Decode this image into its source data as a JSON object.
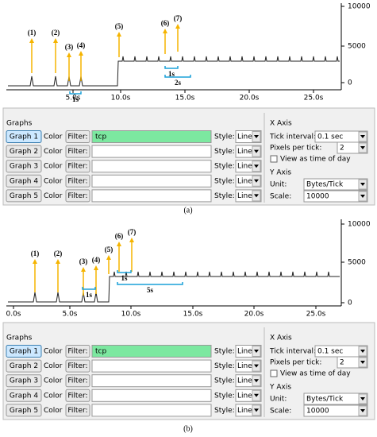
{
  "panels": [
    {
      "graph": {
        "yticks": [
          "10000",
          "5000",
          "0"
        ],
        "xticks": [
          "5.0s",
          "10.0s",
          "15.0s",
          "20.0s",
          "25.0s"
        ],
        "annotations": [
          "(1)",
          "(2)",
          "(3)",
          "(4)",
          "(5)",
          "(6)",
          "(7)"
        ],
        "spans": [
          "1s",
          "1s",
          "2s"
        ]
      },
      "controls": {
        "graphs_title": "Graphs",
        "rows": [
          {
            "button": "Graph 1",
            "color": "Color",
            "text_color": "#000000",
            "filter": "Filter:",
            "filter_value": "tcp",
            "style_label": "Style:",
            "style": "Line"
          },
          {
            "button": "Graph 2",
            "color": "Color",
            "text_color": "#e00000",
            "filter": "Filter:",
            "style_label": "Style:",
            "style": "Line"
          },
          {
            "button": "Graph 3",
            "color": "Color",
            "text_color": "#00c000",
            "filter": "Filter:",
            "style_label": "Style:",
            "style": "Line"
          },
          {
            "button": "Graph 4",
            "color": "Color",
            "text_color": "#0000e0",
            "filter": "Filter:",
            "style_label": "Style:",
            "style": "Line"
          },
          {
            "button": "Graph 5",
            "color": "Color",
            "text_color": "#ff40ff",
            "filter": "Filter:",
            "style_label": "Style:",
            "style": "Line"
          }
        ],
        "x_axis": {
          "title": "X Axis",
          "tick_interval_label": "Tick interval:",
          "tick_interval": "0.1 sec",
          "pixels_label": "Pixels per tick:",
          "pixels": "2",
          "view_label": "View as time of day"
        },
        "y_axis": {
          "title": "Y Axis",
          "unit_label": "Unit:",
          "unit": "Bytes/Tick",
          "scale_label": "Scale:",
          "scale": "10000"
        }
      },
      "caption": "(a)"
    },
    {
      "graph": {
        "yticks": [
          "10000",
          "5000",
          "0"
        ],
        "xticks": [
          "0.0s",
          "5.0s",
          "10.0s",
          "15.0s",
          "20.0s",
          "25.0s"
        ],
        "annotations": [
          "(1)",
          "(2)",
          "(3)",
          "(4)",
          "(5)",
          "(6)",
          "(7)"
        ],
        "spans": [
          "1s",
          "1s",
          "5s"
        ]
      },
      "controls": {
        "graphs_title": "Graphs",
        "rows": [
          {
            "button": "Graph 1",
            "color": "Color",
            "text_color": "#000000",
            "filter": "Filter:",
            "filter_value": "tcp",
            "style_label": "Style:",
            "style": "Line"
          },
          {
            "button": "Graph 2",
            "color": "Color",
            "text_color": "#e00000",
            "filter": "Filter:",
            "style_label": "Style:",
            "style": "Line"
          },
          {
            "button": "Graph 3",
            "color": "Color",
            "text_color": "#00c000",
            "filter": "Filter:",
            "style_label": "Style:",
            "style": "Line"
          },
          {
            "button": "Graph 4",
            "color": "Color",
            "text_color": "#0000e0",
            "filter": "Filter:",
            "style_label": "Style:",
            "style": "Line"
          },
          {
            "button": "Graph 5",
            "color": "Color",
            "text_color": "#ff40ff",
            "filter": "Filter:",
            "style_label": "Style:",
            "style": "Line"
          }
        ],
        "x_axis": {
          "title": "X Axis",
          "tick_interval_label": "Tick interval:",
          "tick_interval": "0.1 sec",
          "pixels_label": "Pixels per tick:",
          "pixels": "2",
          "view_label": "View as time of day"
        },
        "y_axis": {
          "title": "Y Axis",
          "unit_label": "Unit:",
          "unit": "Bytes/Tick",
          "scale_label": "Scale:",
          "scale": "10000"
        }
      },
      "caption": "(b)"
    }
  ]
}
